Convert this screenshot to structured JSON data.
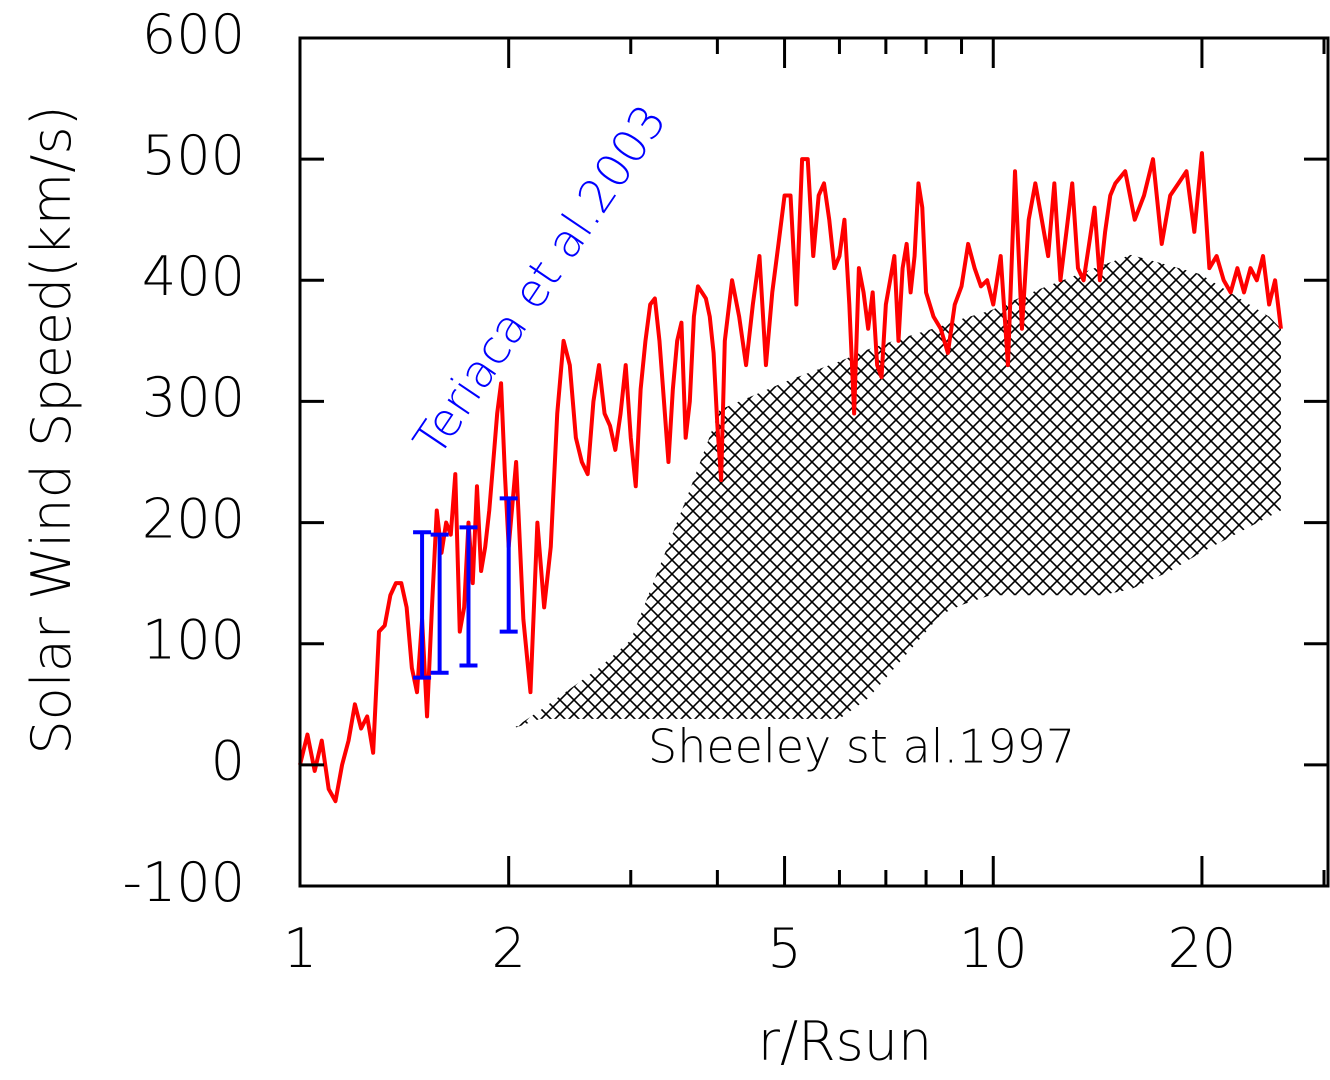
{
  "chart_data": {
    "type": "line",
    "x_label": "r/Rsun",
    "y_label": "Solar Wind Speed(km/s)",
    "xscale": "log",
    "xlim": [
      1,
      30.4
    ],
    "ylim": [
      -100,
      600
    ],
    "xticks": [
      1,
      2,
      5,
      10,
      20
    ],
    "xminorticks": [
      3,
      4,
      6,
      7,
      8,
      9,
      30
    ],
    "yticks": [
      -100,
      0,
      100,
      200,
      300,
      400,
      500,
      600
    ],
    "series": [
      {
        "color": "#ff0000",
        "x": [
          1.0,
          1.025,
          1.05,
          1.075,
          1.1,
          1.125,
          1.15,
          1.175,
          1.2,
          1.225,
          1.25,
          1.275,
          1.3,
          1.325,
          1.35,
          1.375,
          1.4,
          1.425,
          1.45,
          1.475,
          1.5,
          1.525,
          1.55,
          1.575,
          1.6,
          1.625,
          1.65,
          1.675,
          1.7,
          1.725,
          1.75,
          1.775,
          1.8,
          1.825,
          1.85,
          1.875,
          1.9,
          1.925,
          1.95,
          1.975,
          2.0,
          2.05,
          2.1,
          2.15,
          2.2,
          2.25,
          2.3,
          2.35,
          2.4,
          2.45,
          2.5,
          2.55,
          2.6,
          2.65,
          2.7,
          2.75,
          2.8,
          2.85,
          2.9,
          2.95,
          3.0,
          3.05,
          3.1,
          3.15,
          3.2,
          3.25,
          3.3,
          3.35,
          3.4,
          3.45,
          3.5,
          3.55,
          3.6,
          3.65,
          3.7,
          3.75,
          3.8,
          3.85,
          3.9,
          3.95,
          4.0,
          4.05,
          4.1,
          4.2,
          4.3,
          4.4,
          4.5,
          4.6,
          4.7,
          4.8,
          4.9,
          5.0,
          5.1,
          5.2,
          5.3,
          5.4,
          5.5,
          5.6,
          5.7,
          5.8,
          5.9,
          6.0,
          6.1,
          6.2,
          6.3,
          6.4,
          6.5,
          6.6,
          6.7,
          6.8,
          6.9,
          7.0,
          7.1,
          7.2,
          7.3,
          7.4,
          7.5,
          7.6,
          7.7,
          7.8,
          7.9,
          8.0,
          8.2,
          8.4,
          8.6,
          8.8,
          9.0,
          9.2,
          9.4,
          9.6,
          9.8,
          10.0,
          10.25,
          10.5,
          10.75,
          11.0,
          11.25,
          11.5,
          11.75,
          12.0,
          12.25,
          12.5,
          12.75,
          13.0,
          13.25,
          13.5,
          13.75,
          14.0,
          14.25,
          14.5,
          14.75,
          15.0,
          15.5,
          16.0,
          16.5,
          17.0,
          17.5,
          18.0,
          18.5,
          19.0,
          19.5,
          20.0,
          20.5,
          21.0,
          21.5,
          22.0,
          22.5,
          23.0,
          23.5,
          24.0,
          24.5,
          25.0,
          25.5,
          26.0
        ],
        "values": [
          0,
          25,
          -5,
          20,
          -20,
          -30,
          0,
          20,
          50,
          30,
          40,
          10,
          110,
          115,
          140,
          150,
          150,
          130,
          80,
          60,
          120,
          40,
          130,
          210,
          175,
          200,
          190,
          240,
          110,
          130,
          200,
          150,
          230,
          160,
          180,
          210,
          250,
          290,
          315,
          240,
          180,
          250,
          120,
          60,
          200,
          130,
          180,
          290,
          350,
          330,
          270,
          250,
          240,
          300,
          330,
          290,
          280,
          260,
          290,
          330,
          270,
          230,
          310,
          350,
          380,
          385,
          350,
          300,
          250,
          310,
          350,
          365,
          270,
          300,
          370,
          395,
          390,
          385,
          370,
          340,
          280,
          235,
          350,
          400,
          370,
          330,
          380,
          420,
          330,
          390,
          430,
          470,
          470,
          380,
          500,
          500,
          420,
          470,
          480,
          450,
          410,
          420,
          450,
          380,
          290,
          410,
          390,
          360,
          390,
          330,
          320,
          380,
          400,
          420,
          350,
          410,
          430,
          390,
          420,
          480,
          460,
          390,
          370,
          360,
          340,
          380,
          395,
          430,
          410,
          395,
          400,
          380,
          420,
          330,
          490,
          360,
          450,
          480,
          450,
          420,
          480,
          400,
          440,
          480,
          410,
          400,
          430,
          460,
          400,
          440,
          470,
          480,
          490,
          450,
          470,
          500,
          430,
          470,
          480,
          490,
          440,
          505,
          410,
          420,
          400,
          390,
          410,
          390,
          410,
          400,
          420,
          380,
          400,
          360
        ]
      }
    ],
    "errorbars": {
      "color": "#0000ff",
      "x": [
        1.5,
        1.59,
        1.75,
        2.0
      ],
      "values": [
        132,
        133,
        139,
        165
      ],
      "errors": [
        60,
        57,
        57,
        55
      ]
    },
    "band": {
      "color": "#000000",
      "x": [
        2.03,
        2.22,
        2.7,
        3.0,
        3.65,
        4.03,
        5.1,
        6.0,
        6.6,
        7.36,
        8.4,
        9.0,
        9.9,
        11.7,
        14.3,
        15.8,
        18,
        19.9,
        25,
        26
      ],
      "upper": [
        30,
        45,
        80,
        103,
        227,
        293,
        318,
        333,
        343,
        352,
        362,
        368,
        375,
        393,
        412,
        421,
        412,
        405,
        370,
        360
      ],
      "lower": [
        30,
        38,
        38,
        38,
        38,
        38,
        38,
        38,
        55,
        86,
        124,
        132,
        140,
        140,
        140,
        145,
        160,
        175,
        205,
        210
      ]
    },
    "annotations": [
      {
        "text": "Teriaca et al.2003",
        "color": "#0000ff"
      },
      {
        "text": "Sheeley st al.1997",
        "color": "#000000"
      }
    ]
  }
}
